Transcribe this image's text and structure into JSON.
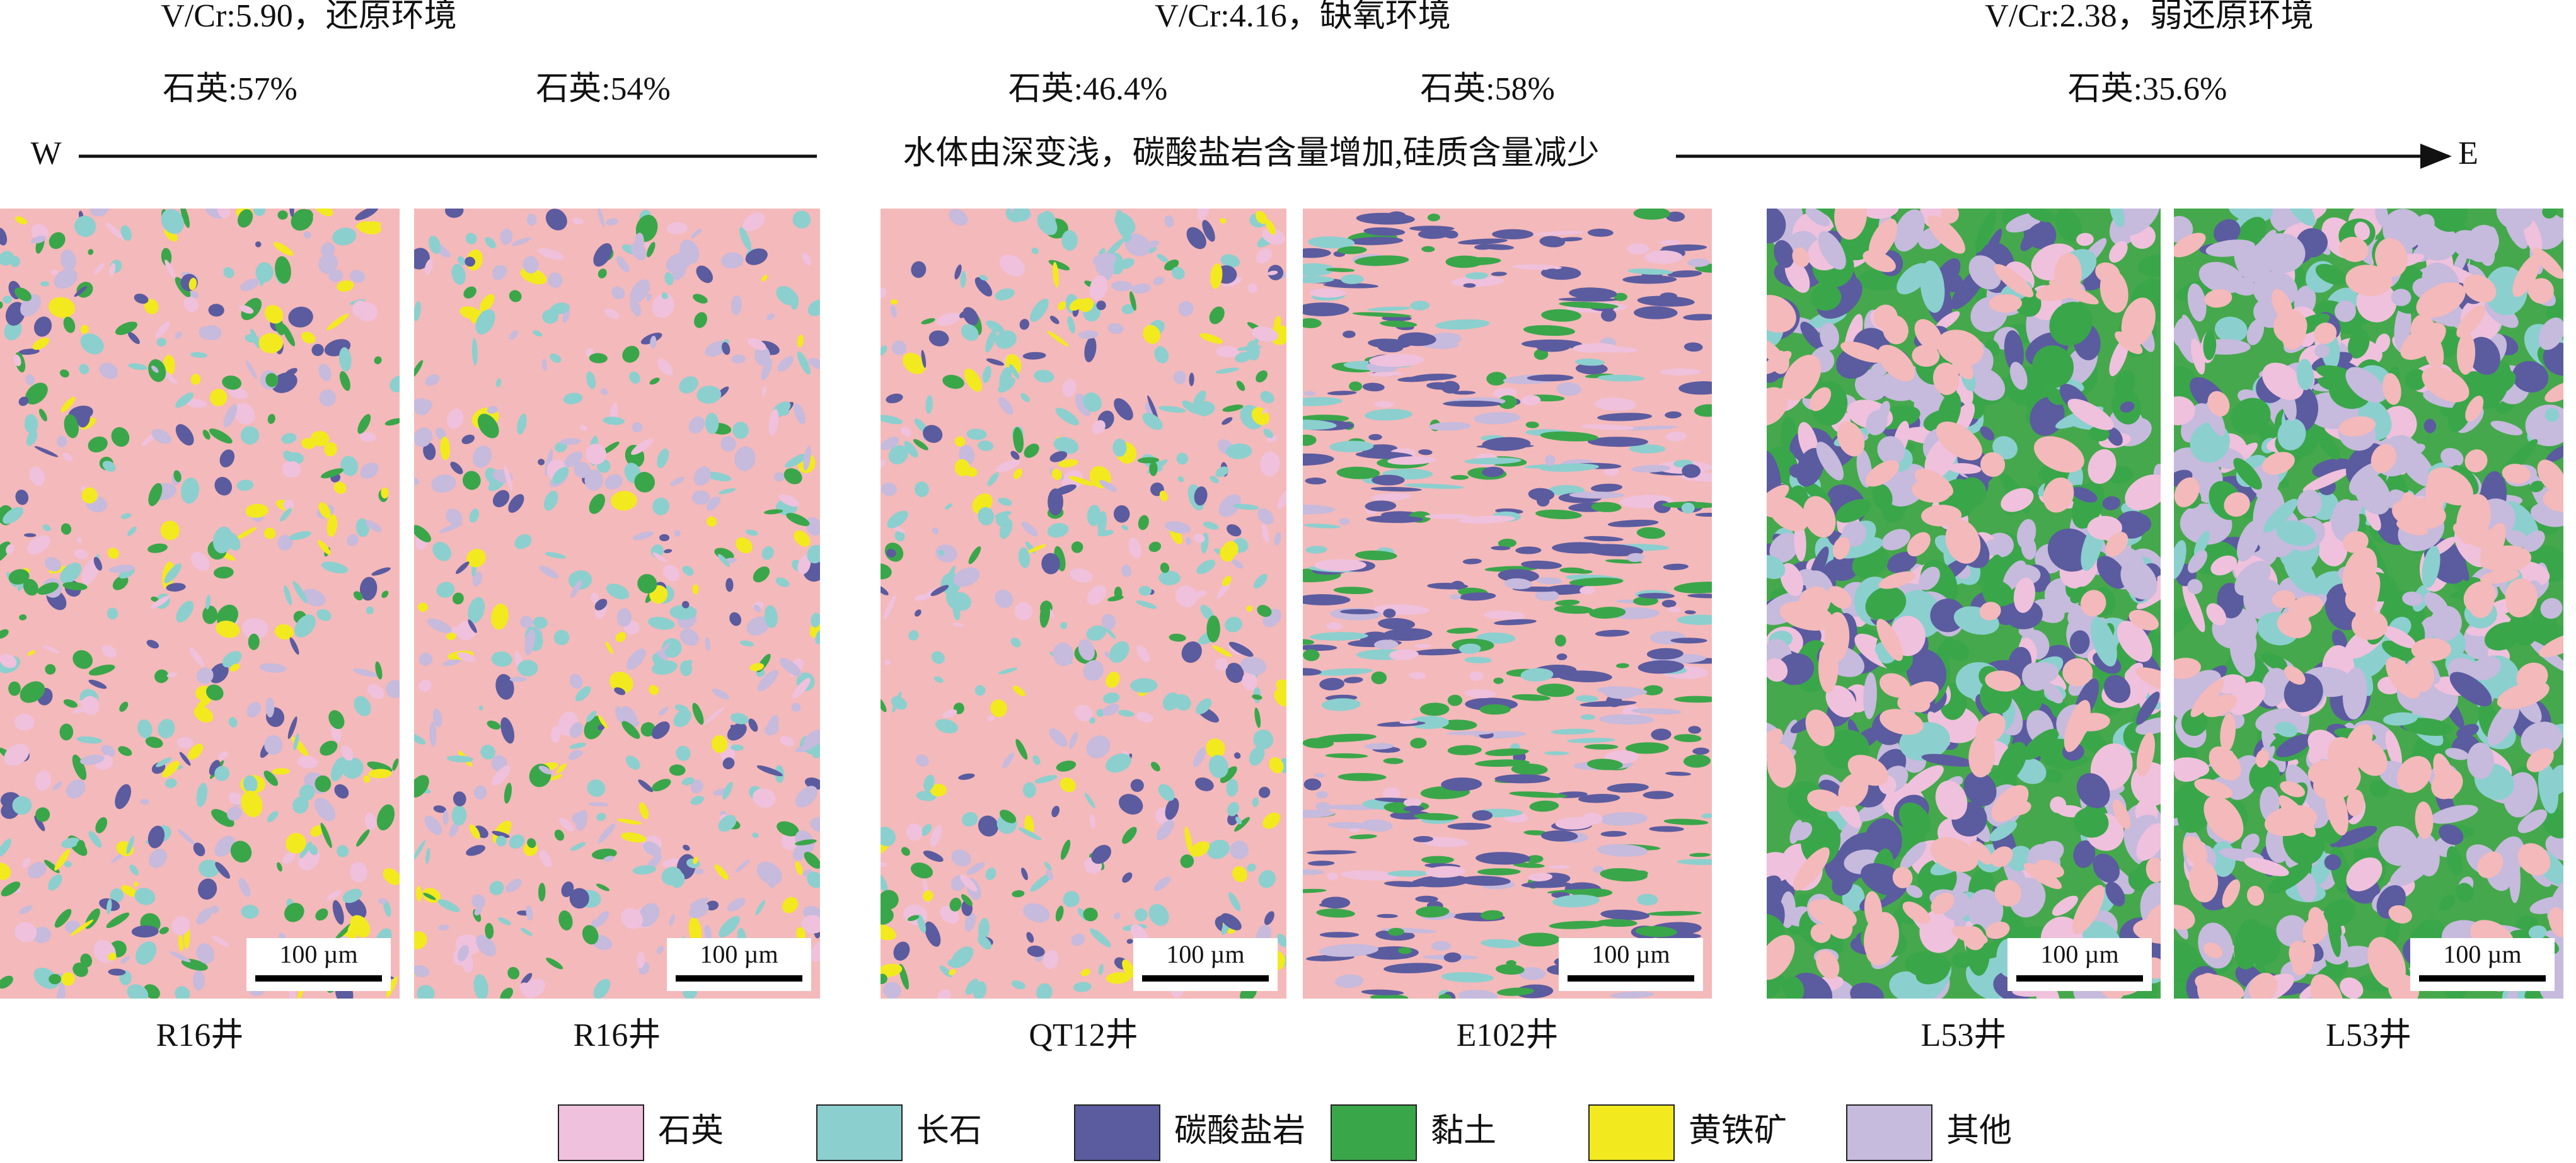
{
  "groups": [
    {
      "title": "V/Cr:5.90，还原环境"
    },
    {
      "title": "V/Cr:4.16，缺氧环境"
    },
    {
      "title": "V/Cr:2.38，弱还原环境"
    }
  ],
  "quartz_labels": [
    "石英:57%",
    "石英:54%",
    "石英:46.4%",
    "石英:58%",
    "石英:35.6%"
  ],
  "direction": {
    "west": "W",
    "label": "水体由深变浅，碳酸盐岩含量增加,硅质含量减少",
    "east": "E"
  },
  "panels": [
    {
      "well": "R16井",
      "scale_bar": "100 µm"
    },
    {
      "well": "R16井",
      "scale_bar": "100 µm"
    },
    {
      "well": "QT12井",
      "scale_bar": "100 µm"
    },
    {
      "well": "E102井",
      "scale_bar": "100 µm"
    },
    {
      "well": "L53井",
      "scale_bar": "100 µm"
    },
    {
      "well": "L53井",
      "scale_bar": "100 µm"
    }
  ],
  "legend": [
    {
      "label": "石英",
      "color": "#efc1dc"
    },
    {
      "label": "长石",
      "color": "#8ccfcf"
    },
    {
      "label": "碳酸盐岩",
      "color": "#5b5b9f"
    },
    {
      "label": "黏土",
      "color": "#3aa64a"
    },
    {
      "label": "黄铁矿",
      "color": "#f2ea1f"
    },
    {
      "label": "其他",
      "color": "#c6badd"
    }
  ]
}
